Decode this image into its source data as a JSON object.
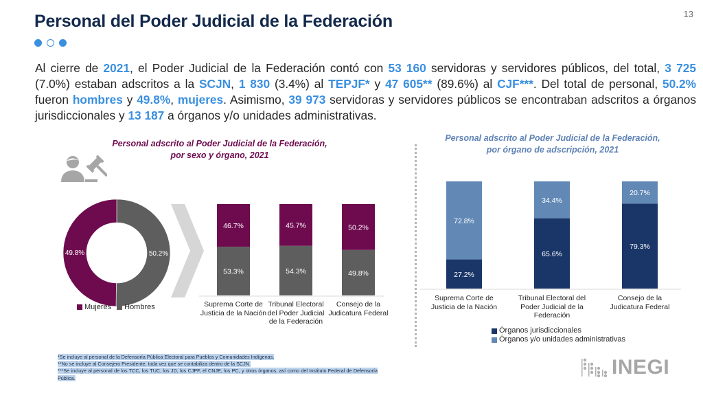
{
  "header": {
    "title": "Personal del Poder Judicial de la Federación",
    "page_number": "13"
  },
  "intro": {
    "segments": [
      {
        "t": "Al cierre de ",
        "hl": false
      },
      {
        "t": "2021",
        "hl": true
      },
      {
        "t": ", el Poder Judicial de la Federación contó con ",
        "hl": false
      },
      {
        "t": "53 160",
        "hl": true
      },
      {
        "t": " servidoras y servidores públicos, del total, ",
        "hl": false
      },
      {
        "t": "3 725",
        "hl": true
      },
      {
        "t": "  (7.0%) estaban adscritos a la ",
        "hl": false
      },
      {
        "t": "SCJN",
        "hl": true
      },
      {
        "t": ", ",
        "hl": false
      },
      {
        "t": "1 830",
        "hl": true
      },
      {
        "t": " (3.4%) al ",
        "hl": false
      },
      {
        "t": "TEPJF*",
        "hl": true
      },
      {
        "t": " y ",
        "hl": false
      },
      {
        "t": "47 605**",
        "hl": true
      },
      {
        "t": " (89.6%) al ",
        "hl": false
      },
      {
        "t": "CJF***",
        "hl": true
      },
      {
        "t": ". Del total de personal, ",
        "hl": false
      },
      {
        "t": "50.2%",
        "hl": true
      },
      {
        "t": " fueron ",
        "hl": false
      },
      {
        "t": "hombres",
        "hl": true
      },
      {
        "t": " y ",
        "hl": false
      },
      {
        "t": "49.8%",
        "hl": true
      },
      {
        "t": ", ",
        "hl": false
      },
      {
        "t": "mujeres",
        "hl": true
      },
      {
        "t": ". Asimismo, ",
        "hl": false
      },
      {
        "t": "39 973",
        "hl": true
      },
      {
        "t": " servidoras y servidores públicos se encontraban adscritos a órganos jurisdiccionales y ",
        "hl": false
      },
      {
        "t": "13 187",
        "hl": true
      },
      {
        "t": " a órganos y/o unidades administrativas.",
        "hl": false
      }
    ]
  },
  "icons": {
    "person_gavel": "person-with-gavel-icon",
    "chevron": "chevron-right-icon",
    "logo": "inegi-logo"
  },
  "colors": {
    "accent_blue": "#3a8fe0",
    "title_navy": "#13294b",
    "mujeres": "#6e0b4f",
    "hombres": "#5e5e5e",
    "jurisdiccionales": "#1a3668",
    "administrativas": "#6289b5"
  },
  "chart_data": [
    {
      "type": "pie",
      "variant": "donut",
      "title": "Personal adscrito al Poder Judicial de la Federación, por sexo y órgano, 2021",
      "categories": [
        "Mujeres",
        "Hombres"
      ],
      "values": [
        49.8,
        50.2
      ],
      "labels": [
        "49.8%",
        "50.2%"
      ],
      "legend": [
        "Mujeres",
        "Hombres"
      ],
      "legend_position": "bottom"
    },
    {
      "type": "bar",
      "stacked": true,
      "percent": true,
      "title": "Personal adscrito al Poder Judicial de la Federación, por sexo y órgano, 2021",
      "categories": [
        [
          "Suprema Corte de",
          "Justicia de la Nación"
        ],
        [
          "Tribunal Electoral",
          "del Poder Judicial",
          "de la Federación"
        ],
        [
          "Consejo de la",
          "Judicatura Federal"
        ]
      ],
      "series": [
        {
          "name": "Hombres",
          "values": [
            53.3,
            54.3,
            49.8
          ],
          "labels": [
            "53.3%",
            "54.3%",
            "49.8%"
          ]
        },
        {
          "name": "Mujeres",
          "values": [
            46.7,
            45.7,
            50.2
          ],
          "labels": [
            "46.7%",
            "45.7%",
            "50.2%"
          ]
        }
      ],
      "ylim": [
        0,
        100
      ],
      "grid": false
    },
    {
      "type": "bar",
      "stacked": true,
      "percent": true,
      "title": "Personal adscrito al Poder Judicial de la Federación, por órgano de adscripción, 2021",
      "title_lines": [
        "Personal adscrito al Poder Judicial de la Federación,",
        "por órgano de adscripción, 2021"
      ],
      "categories": [
        [
          "Suprema Corte de",
          "Justicia de la Nación"
        ],
        [
          "Tribunal Electoral del",
          "Poder Judicial de la",
          "Federación"
        ],
        [
          "Consejo de la",
          "Judicatura Federal"
        ]
      ],
      "series": [
        {
          "name": "Órganos jurisdiccionales",
          "values": [
            27.2,
            65.6,
            79.3
          ],
          "labels": [
            "27.2%",
            "65.6%",
            "79.3%"
          ]
        },
        {
          "name": "Órganos y/o unidades administrativas",
          "values": [
            72.8,
            34.4,
            20.7
          ],
          "labels": [
            "72.8%",
            "34.4%",
            "20.7%"
          ]
        }
      ],
      "legend": [
        "Órganos jurisdiccionales",
        "Órganos y/o unidades administrativas"
      ],
      "legend_position": "bottom",
      "ylim": [
        0,
        100
      ],
      "grid": false
    }
  ],
  "left_chart": {
    "title_line1": "Personal adscrito al Poder Judicial de la Federación,",
    "title_line2": "por sexo y órgano, 2021",
    "legend_mujeres": "Mujeres",
    "legend_hombres": "Hombres"
  },
  "right_chart": {
    "title_line1": "Personal adscrito al Poder Judicial de la Federación,",
    "title_line2": "por órgano de adscripción, 2021",
    "legend_jur": "Órganos jurisdiccionales",
    "legend_adm": "Órganos y/o unidades administrativas"
  },
  "footnotes": [
    "*Se incluye al personal de la Defensoría Pública Electoral para Pueblos y Comunidades Indígenas.",
    "**No se incluye al Consejero Presidente, toda vez que se contabiliza dentro de la SCJN.",
    "***Se incluye al personal de los TCC, los TUC, los JD, los CJPF, el CNJE, los PC, y otros órganos, así como del Instituto Federal de Defensoría Pública."
  ],
  "logo": {
    "text": "INEGI"
  }
}
